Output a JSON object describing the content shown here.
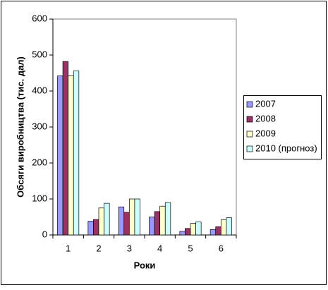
{
  "chart_data": {
    "type": "bar",
    "y_label": "Обсяги виробництва (тис. дал)",
    "x_label": "Роки",
    "categories": [
      "1",
      "2",
      "3",
      "4",
      "5",
      "6"
    ],
    "series": [
      {
        "name": "2007",
        "color": "#9999ff",
        "values": [
          442,
          38,
          78,
          50,
          10,
          15
        ]
      },
      {
        "name": "2008",
        "color": "#993366",
        "values": [
          482,
          43,
          63,
          65,
          18,
          23
        ]
      },
      {
        "name": "2009",
        "color": "#ffffcc",
        "values": [
          442,
          75,
          100,
          80,
          32,
          42
        ]
      },
      {
        "name": "2010 (прогноз)",
        "color": "#ccffff",
        "values": [
          456,
          88,
          100,
          90,
          36,
          48
        ]
      }
    ],
    "ylim": [
      0,
      600
    ],
    "yticks": [
      0,
      100,
      200,
      300,
      400,
      500,
      600
    ],
    "legend": "right"
  }
}
